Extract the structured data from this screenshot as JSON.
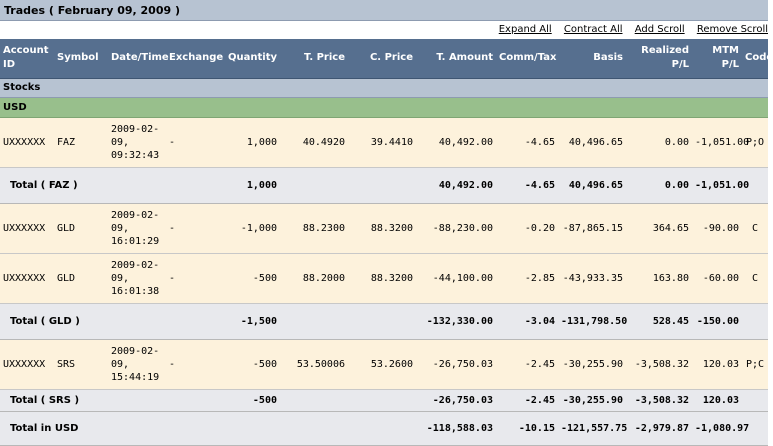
{
  "title": "Trades ( February 09, 2009 )",
  "links": [
    "Expand All",
    "Contract All",
    "Add Scroll",
    "Remove Scroll"
  ],
  "columns": [
    "Account ID",
    "Symbol",
    "Date/Time",
    "Exchange",
    "Quantity",
    "T. Price",
    "C. Price",
    "T. Amount",
    "Comm/Tax",
    "Basis",
    "Realized P/L",
    "MTM P/L",
    "Code"
  ],
  "sections": {
    "asset_class": "Stocks",
    "currency": "USD"
  },
  "rows": [
    {
      "type": "trade",
      "account": "UXXXXXX",
      "symbol": "FAZ",
      "datetime": "2009-02-09, 09:32:43",
      "exchange": "-",
      "quantity": "1,000",
      "tprice": "40.4920",
      "cprice": "39.4410",
      "tamount": "40,492.00",
      "commtax": "-4.65",
      "basis": "40,496.65",
      "realized": "0.00",
      "mtm": "-1,051.00",
      "code": "P;O"
    },
    {
      "type": "total",
      "label": "Total ( FAZ )",
      "quantity": "1,000",
      "tamount": "40,492.00",
      "commtax": "-4.65",
      "basis": "40,496.65",
      "realized": "0.00",
      "mtm": "-1,051.00"
    },
    {
      "type": "trade",
      "account": "UXXXXXX",
      "symbol": "GLD",
      "datetime": "2009-02-09, 16:01:29",
      "exchange": "-",
      "quantity": "-1,000",
      "tprice": "88.2300",
      "cprice": "88.3200",
      "tamount": "-88,230.00",
      "commtax": "-0.20",
      "basis": "-87,865.15",
      "realized": "364.65",
      "mtm": "-90.00",
      "code": "C"
    },
    {
      "type": "trade",
      "account": "UXXXXXX",
      "symbol": "GLD",
      "datetime": "2009-02-09, 16:01:38",
      "exchange": "-",
      "quantity": "-500",
      "tprice": "88.2000",
      "cprice": "88.3200",
      "tamount": "-44,100.00",
      "commtax": "-2.85",
      "basis": "-43,933.35",
      "realized": "163.80",
      "mtm": "-60.00",
      "code": "C"
    },
    {
      "type": "total",
      "label": "Total ( GLD )",
      "quantity": "-1,500",
      "tamount": "-132,330.00",
      "commtax": "-3.04",
      "basis": "-131,798.50",
      "realized": "528.45",
      "mtm": "-150.00"
    },
    {
      "type": "trade",
      "account": "UXXXXXX",
      "symbol": "SRS",
      "datetime": "2009-02-09, 15:44:19",
      "exchange": "-",
      "quantity": "-500",
      "tprice": "53.50006",
      "cprice": "53.2600",
      "tamount": "-26,750.03",
      "commtax": "-2.45",
      "basis": "-30,255.90",
      "realized": "-3,508.32",
      "mtm": "120.03",
      "code": "P;C"
    },
    {
      "type": "total",
      "label": "Total ( SRS )",
      "quantity": "-500",
      "tamount": "-26,750.03",
      "commtax": "-2.45",
      "basis": "-30,255.90",
      "realized": "-3,508.32",
      "mtm": "120.03"
    },
    {
      "type": "grand",
      "label": "Total in USD",
      "quantity": "",
      "tamount": "-118,588.03",
      "commtax": "-10.15",
      "basis": "-121,557.75",
      "realized": "-2,979.87",
      "mtm": "-1,080.97"
    }
  ]
}
